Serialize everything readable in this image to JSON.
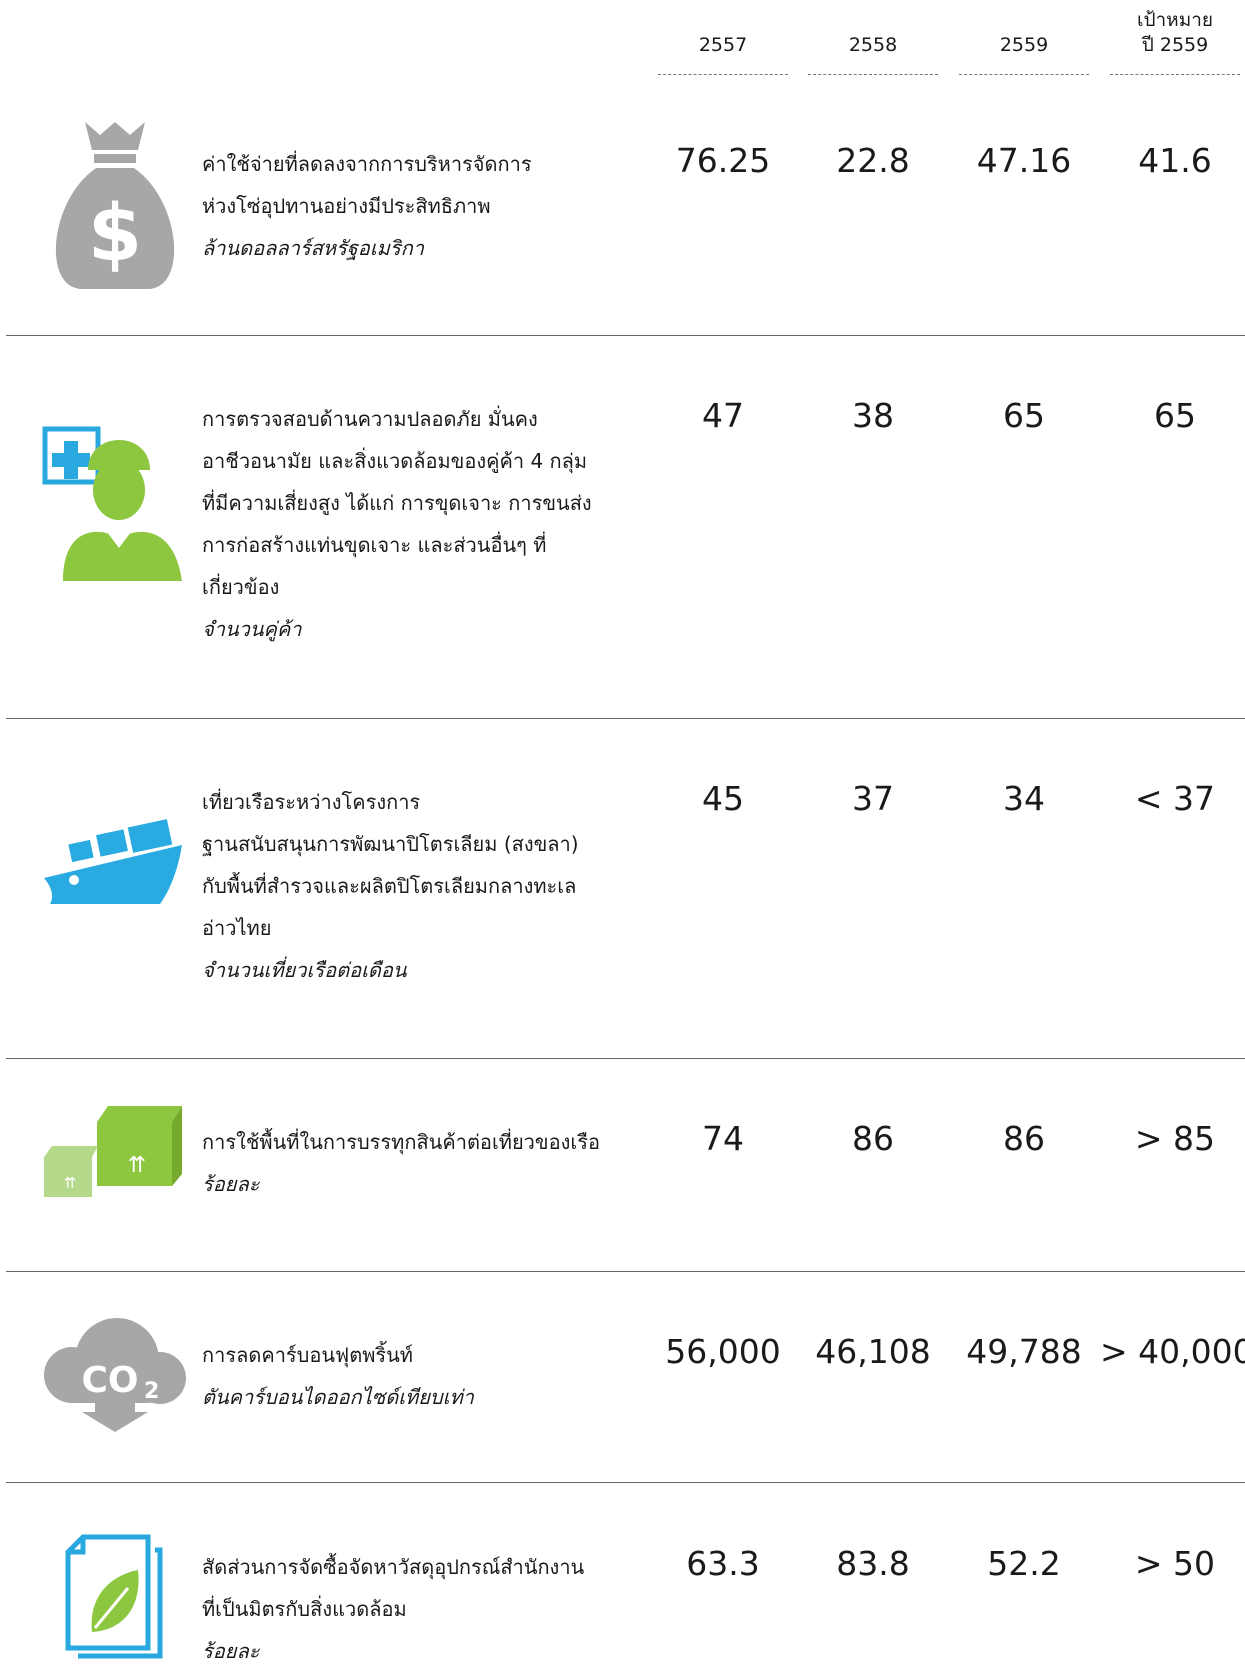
{
  "header": {
    "columns": [
      "2557",
      "2558",
      "2559",
      [
        "เป้าหมาย",
        "ปี 2559"
      ]
    ]
  },
  "rows": [
    {
      "lines": [
        "ค่าใช้จ่ายที่ลดลงจากการบริหารจัดการ",
        "ห่วงโซ่อุปทานอย่างมีประสิทธิภาพ"
      ],
      "unit": "ล้านดอลลาร์สหรัฐอเมริกา",
      "values": [
        "76.25",
        "22.8",
        "47.16",
        "41.6"
      ]
    },
    {
      "lines": [
        "การตรวจสอบด้านความปลอดภัย มั่นคง",
        "อาชีวอนามัย และสิ่งแวดล้อมของคู่ค้า 4 กลุ่ม",
        "ที่มีความเสี่ยงสูง ได้แก่ การขุดเจาะ การขนส่ง",
        "การก่อสร้างแท่นขุดเจาะ และส่วนอื่นๆ ที่",
        "เกี่ยวข้อง"
      ],
      "unit": "จำนวนคู่ค้า",
      "values": [
        "47",
        "38",
        "65",
        "65"
      ]
    },
    {
      "lines": [
        "เที่ยวเรือระหว่างโครงการ",
        "ฐานสนับสนุนการพัฒนาปิโตรเลียม (สงขลา)",
        "กับพื้นที่สำรวจและผลิตปิโตรเลียมกลางทะเล",
        "อ่าวไทย"
      ],
      "unit": "จำนวนเที่ยวเรือต่อเดือน",
      "values": [
        "45",
        "37",
        "34",
        "< 37"
      ]
    },
    {
      "lines": [
        "การใช้พื้นที่ในการบรรทุกสินค้าต่อเที่ยวของเรือ"
      ],
      "unit": "ร้อยละ",
      "values": [
        "74",
        "86",
        "86",
        "> 85"
      ]
    },
    {
      "lines": [
        "การลดคาร์บอนฟุตพริ้นท์"
      ],
      "unit": "ตันคาร์บอนไดออกไซด์เทียบเท่า",
      "values": [
        "56,000",
        "46,108",
        "49,788",
        "> 40,000"
      ]
    },
    {
      "lines": [
        "สัดส่วนการจัดซื้อจัดหาวัสดุอุปกรณ์สำนักงาน",
        "ที่เป็นมิตรกับสิ่งแวดล้อม"
      ],
      "unit": "ร้อยละ",
      "values": [
        "63.3",
        "83.8",
        "52.2",
        "> 50"
      ]
    }
  ]
}
